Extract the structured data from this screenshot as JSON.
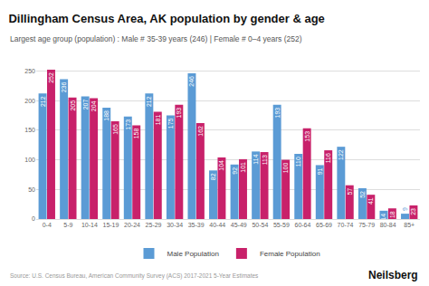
{
  "chart_data": {
    "type": "bar",
    "title": "Dillingham Census Area, AK population by gender & age",
    "subtitle": "Largest age group (population) : Male # 35-39 years (246) | Female # 0–4 years (252)",
    "categories": [
      "0-4",
      "5-9",
      "10-14",
      "15-19",
      "20-24",
      "25-29",
      "30-34",
      "35-39",
      "40-44",
      "45-49",
      "50-54",
      "55-59",
      "60-64",
      "65-69",
      "70-74",
      "75-79",
      "80-84",
      "85+"
    ],
    "series": [
      {
        "name": "Male Population",
        "color": "#5B9BD5",
        "values": [
          212,
          236,
          207,
          188,
          173,
          212,
          175,
          246,
          82,
          92,
          114,
          193,
          110,
          91,
          122,
          52,
          14,
          9
        ]
      },
      {
        "name": "Female Population",
        "color": "#C8216A",
        "values": [
          252,
          205,
          204,
          165,
          158,
          181,
          193,
          162,
          104,
          101,
          113,
          100,
          153,
          116,
          57,
          41,
          18,
          23
        ]
      }
    ],
    "ylim": [
      0,
      275
    ],
    "yticks": [
      0,
      50,
      100,
      150,
      200,
      250
    ],
    "grid": true,
    "legend": "bottom",
    "data_labels": true,
    "annotations": [
      "Source: U.S. Census Bureau, American Community Survey (ACS) 2017-2021 5-Year Estimates",
      "Neilsberg"
    ]
  }
}
